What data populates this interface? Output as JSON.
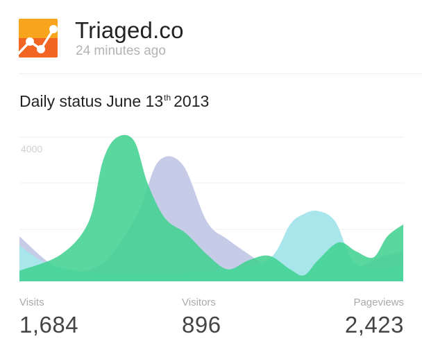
{
  "header": {
    "app_name": "Triaged.co",
    "timestamp": "24 minutes ago"
  },
  "title": {
    "prefix": "Daily status June 13",
    "suffix": "th",
    "year": "2013"
  },
  "chart_data": {
    "type": "area",
    "y_tick_labels": [
      "4000"
    ],
    "grid": true,
    "series": [
      {
        "color": "#c6cce8",
        "points": [
          [
            0,
            0.7
          ],
          [
            60,
            0.92
          ],
          [
            120,
            0.88
          ],
          [
            170,
            0.55
          ],
          [
            200,
            0.2
          ],
          [
            235,
            0.22
          ],
          [
            270,
            0.6
          ],
          [
            300,
            0.72
          ],
          [
            340,
            0.85
          ],
          [
            380,
            0.97
          ],
          [
            420,
            0.96
          ],
          [
            480,
            0.92
          ],
          [
            520,
            0.84
          ],
          [
            553,
            0.8
          ]
        ]
      },
      {
        "color": "#a8e6ec",
        "points": [
          [
            0,
            0.76
          ],
          [
            40,
            0.88
          ],
          [
            100,
            0.94
          ],
          [
            200,
            0.95
          ],
          [
            300,
            0.92
          ],
          [
            360,
            0.85
          ],
          [
            390,
            0.62
          ],
          [
            410,
            0.55
          ],
          [
            430,
            0.53
          ],
          [
            455,
            0.6
          ],
          [
            480,
            0.86
          ],
          [
            510,
            0.91
          ],
          [
            553,
            0.9
          ]
        ]
      },
      {
        "color": "#44d497",
        "opacity": 0.72,
        "points": [
          [
            0,
            0.93
          ],
          [
            60,
            0.82
          ],
          [
            100,
            0.6
          ],
          [
            120,
            0.2
          ],
          [
            140,
            0.04
          ],
          [
            165,
            0.06
          ],
          [
            185,
            0.35
          ],
          [
            210,
            0.58
          ],
          [
            240,
            0.68
          ],
          [
            270,
            0.82
          ],
          [
            300,
            0.92
          ],
          [
            330,
            0.86
          ],
          [
            360,
            0.83
          ],
          [
            390,
            0.92
          ],
          [
            410,
            0.96
          ],
          [
            430,
            0.86
          ],
          [
            460,
            0.74
          ],
          [
            485,
            0.8
          ],
          [
            510,
            0.84
          ],
          [
            530,
            0.7
          ],
          [
            553,
            0.62
          ]
        ]
      }
    ]
  },
  "stats": {
    "visits": {
      "label": "Visits",
      "value": "1,684"
    },
    "visitors": {
      "label": "Visitors",
      "value": "896"
    },
    "pageviews": {
      "label": "Pageviews",
      "value": "2,423"
    }
  },
  "colors": {
    "accent_green": "#44d497",
    "icon_orange": "#f47e20",
    "icon_orange_dark": "#ef5a22"
  }
}
